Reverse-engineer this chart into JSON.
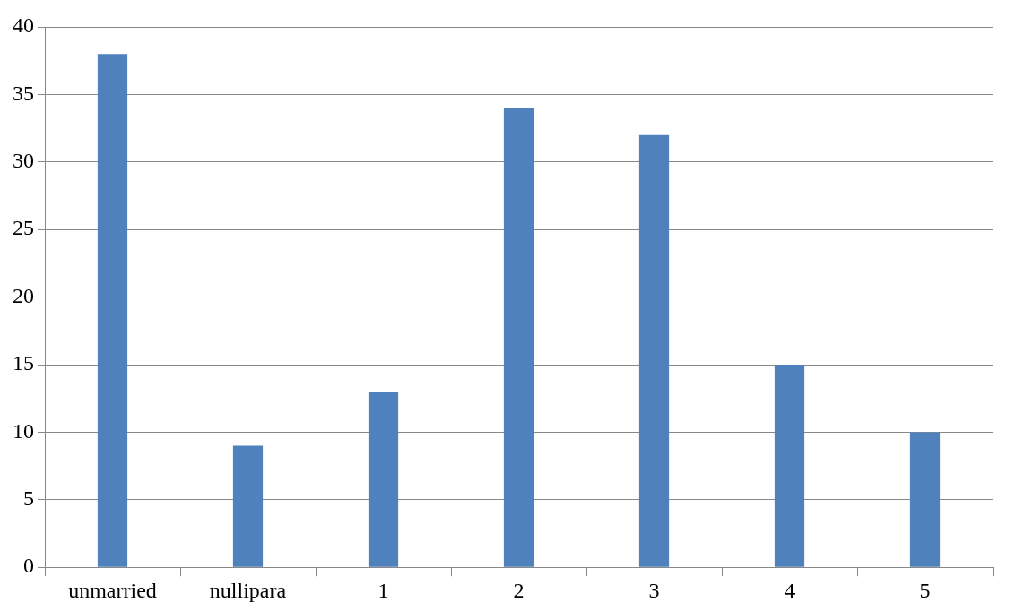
{
  "chart_data": {
    "type": "bar",
    "categories": [
      "unmarried",
      "nullipara",
      "1",
      "2",
      "3",
      "4",
      "5"
    ],
    "values": [
      38,
      9,
      13,
      34,
      32,
      15,
      10
    ],
    "color": "#4f81bd",
    "ylim": [
      0,
      40
    ],
    "yticks": [
      0,
      5,
      10,
      15,
      20,
      25,
      30,
      35,
      40
    ],
    "grid": "y",
    "legend": false
  }
}
